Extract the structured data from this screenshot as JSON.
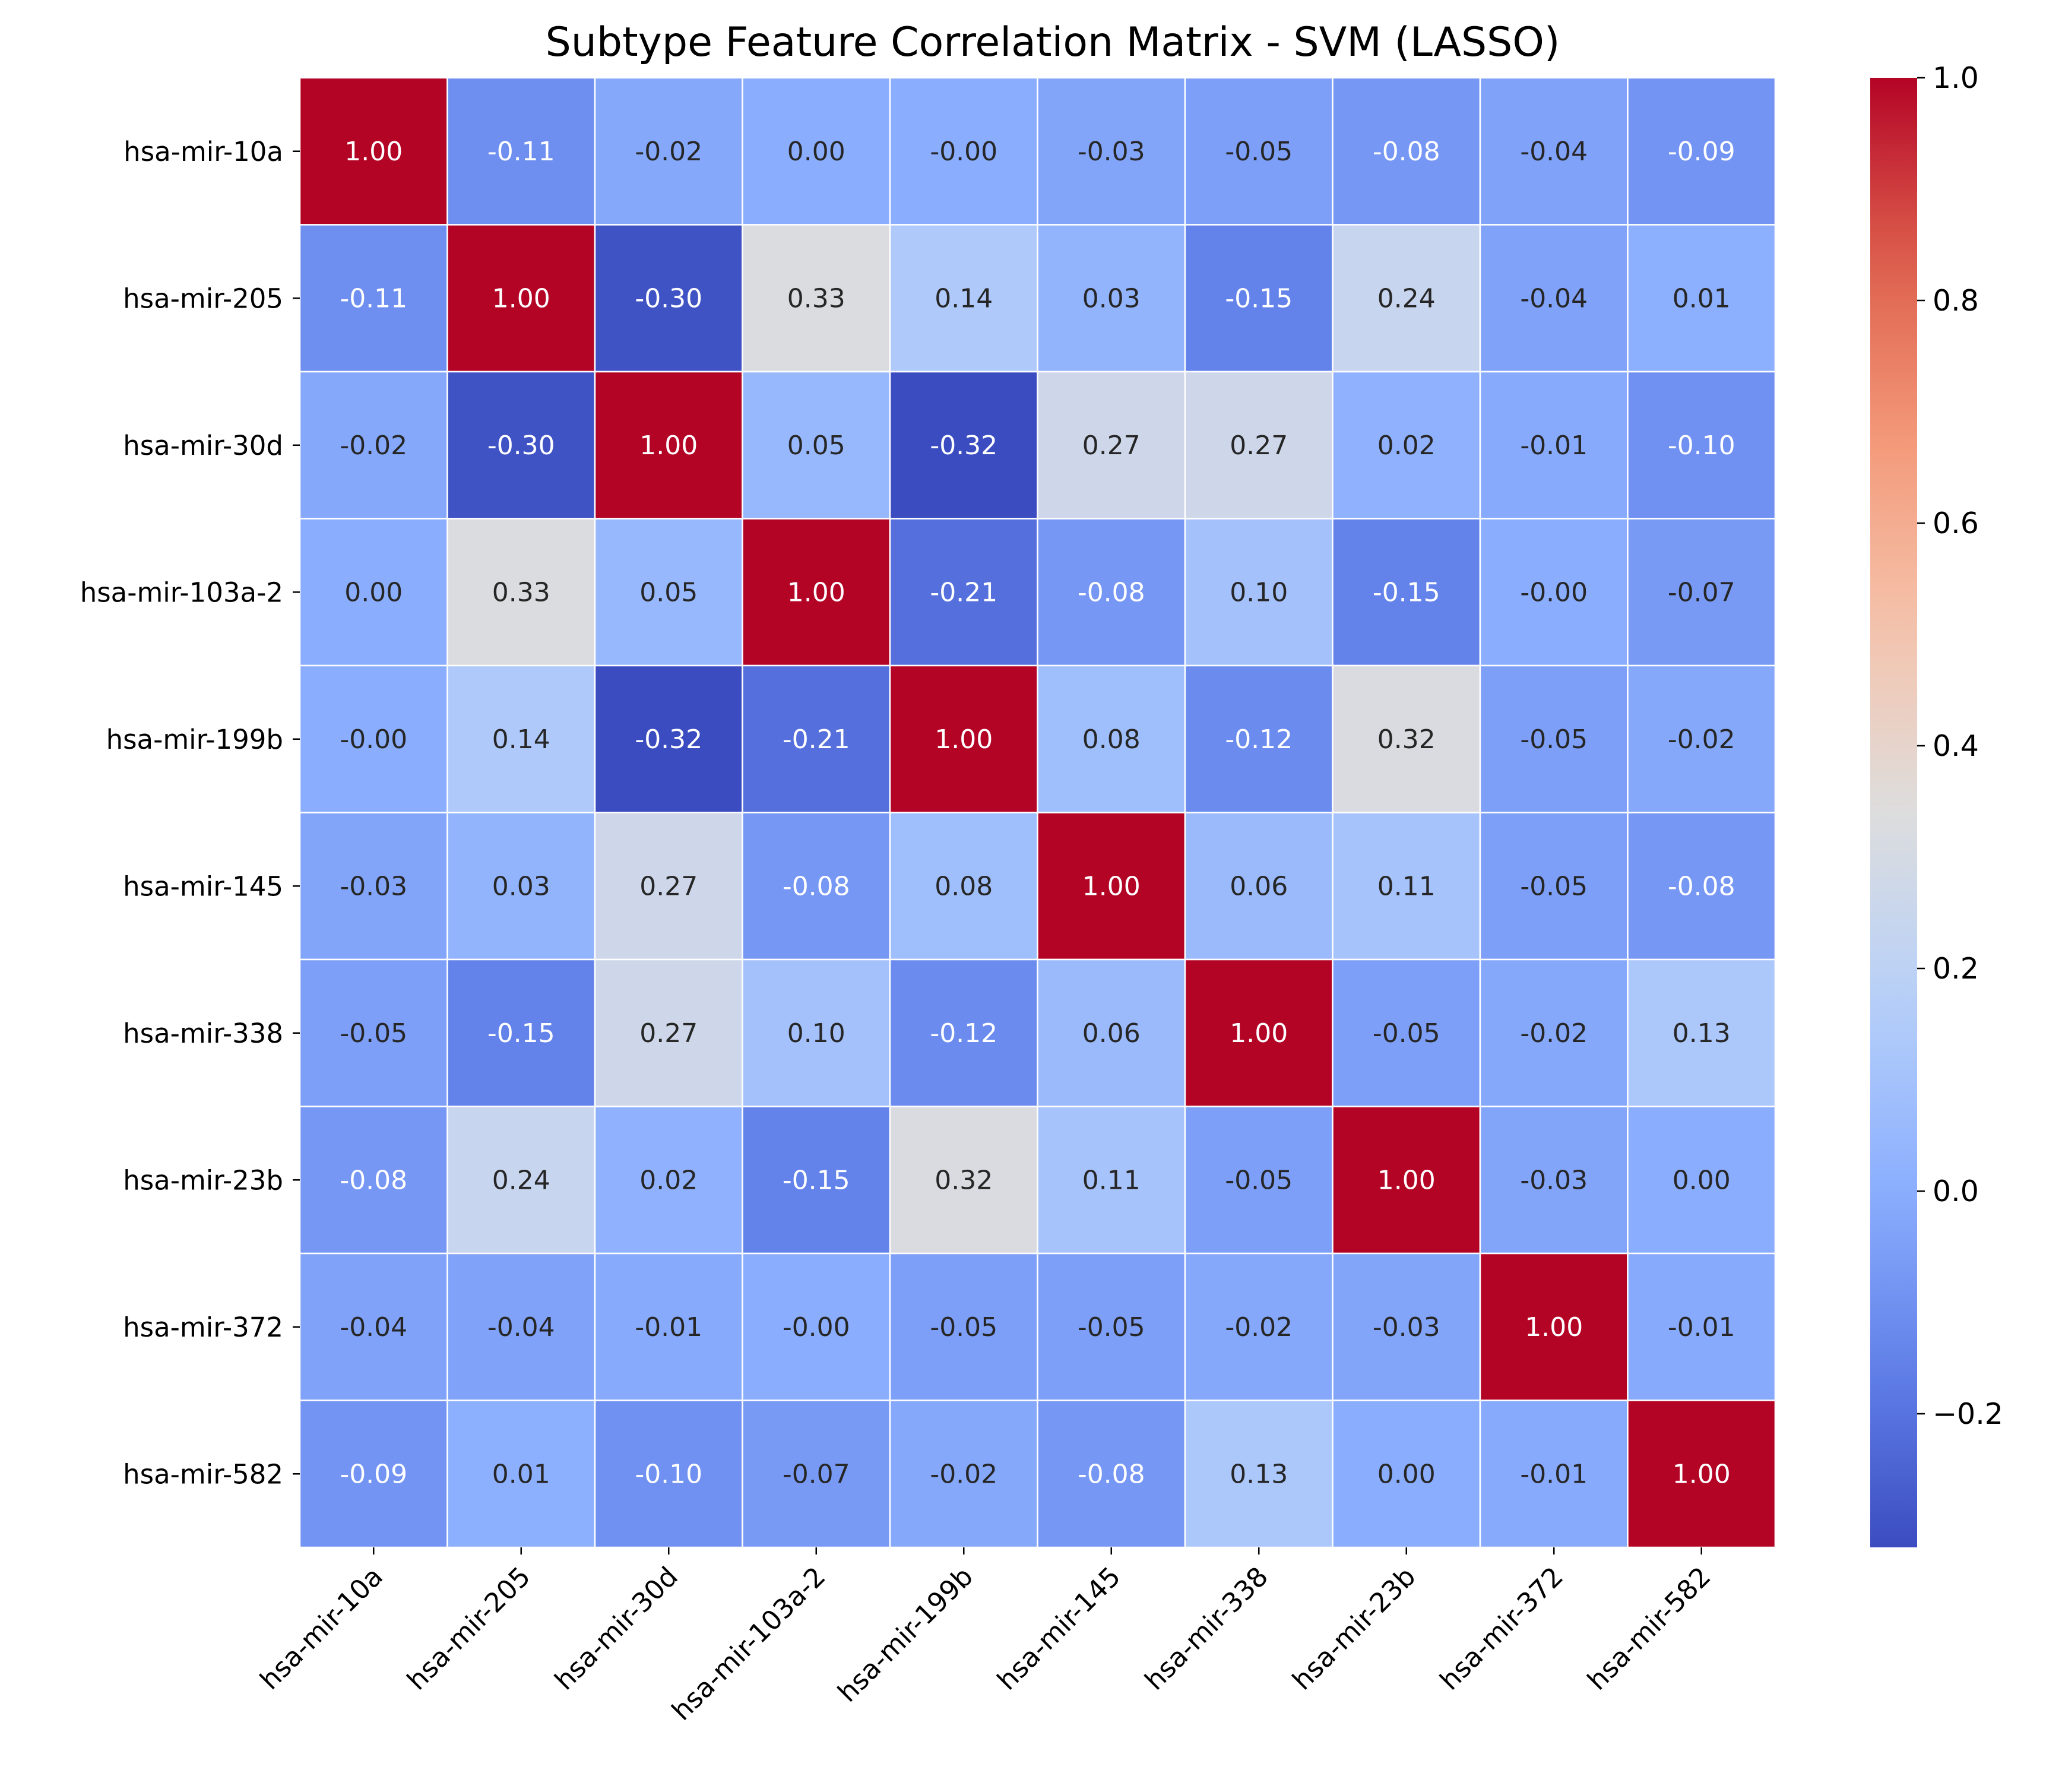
{
  "chart_data": {
    "type": "heatmap",
    "title": "Subtype Feature Correlation Matrix - SVM (LASSO)",
    "xlabel": "",
    "ylabel": "",
    "labels": [
      "hsa-mir-10a",
      "hsa-mir-205",
      "hsa-mir-30d",
      "hsa-mir-103a-2",
      "hsa-mir-199b",
      "hsa-mir-145",
      "hsa-mir-338",
      "hsa-mir-23b",
      "hsa-mir-372",
      "hsa-mir-582"
    ],
    "values": [
      [
        1.0,
        -0.11,
        -0.02,
        0.0,
        -0.0,
        -0.03,
        -0.05,
        -0.08,
        -0.04,
        -0.09
      ],
      [
        -0.11,
        1.0,
        -0.3,
        0.33,
        0.14,
        0.03,
        -0.15,
        0.24,
        -0.04,
        0.01
      ],
      [
        -0.02,
        -0.3,
        1.0,
        0.05,
        -0.32,
        0.27,
        0.27,
        0.02,
        -0.01,
        -0.1
      ],
      [
        0.0,
        0.33,
        0.05,
        1.0,
        -0.21,
        -0.08,
        0.1,
        -0.15,
        -0.0,
        -0.07
      ],
      [
        -0.0,
        0.14,
        -0.32,
        -0.21,
        1.0,
        0.08,
        -0.12,
        0.32,
        -0.05,
        -0.02
      ],
      [
        -0.03,
        0.03,
        0.27,
        -0.08,
        0.08,
        1.0,
        0.06,
        0.11,
        -0.05,
        -0.08
      ],
      [
        -0.05,
        -0.15,
        0.27,
        0.1,
        -0.12,
        0.06,
        1.0,
        -0.05,
        -0.02,
        0.13
      ],
      [
        -0.08,
        0.24,
        0.02,
        -0.15,
        0.32,
        0.11,
        -0.05,
        1.0,
        -0.03,
        0.0
      ],
      [
        -0.04,
        -0.04,
        -0.01,
        -0.0,
        -0.05,
        -0.05,
        -0.02,
        -0.03,
        1.0,
        -0.01
      ],
      [
        -0.09,
        0.01,
        -0.1,
        -0.07,
        -0.02,
        -0.08,
        0.13,
        0.0,
        -0.01,
        1.0
      ]
    ],
    "cell_labels": [
      [
        "1.00",
        "-0.11",
        "-0.02",
        "0.00",
        "-0.00",
        "-0.03",
        "-0.05",
        "-0.08",
        "-0.04",
        "-0.09"
      ],
      [
        "-0.11",
        "1.00",
        "-0.30",
        "0.33",
        "0.14",
        "0.03",
        "-0.15",
        "0.24",
        "-0.04",
        "0.01"
      ],
      [
        "-0.02",
        "-0.30",
        "1.00",
        "0.05",
        "-0.32",
        "0.27",
        "0.27",
        "0.02",
        "-0.01",
        "-0.10"
      ],
      [
        "0.00",
        "0.33",
        "0.05",
        "1.00",
        "-0.21",
        "-0.08",
        "0.10",
        "-0.15",
        "-0.00",
        "-0.07"
      ],
      [
        "-0.00",
        "0.14",
        "-0.32",
        "-0.21",
        "1.00",
        "0.08",
        "-0.12",
        "0.32",
        "-0.05",
        "-0.02"
      ],
      [
        "-0.03",
        "0.03",
        "0.27",
        "-0.08",
        "0.08",
        "1.00",
        "0.06",
        "0.11",
        "-0.05",
        "-0.08"
      ],
      [
        "-0.05",
        "-0.15",
        "0.27",
        "0.10",
        "-0.12",
        "0.06",
        "1.00",
        "-0.05",
        "-0.02",
        "0.13"
      ],
      [
        "-0.08",
        "0.24",
        "0.02",
        "-0.15",
        "0.32",
        "0.11",
        "-0.05",
        "1.00",
        "-0.03",
        "0.00"
      ],
      [
        "-0.04",
        "-0.04",
        "-0.01",
        "-0.00",
        "-0.05",
        "-0.05",
        "-0.02",
        "-0.03",
        "1.00",
        "-0.01"
      ],
      [
        "-0.09",
        "0.01",
        "-0.10",
        "-0.07",
        "-0.02",
        "-0.08",
        "0.13",
        "0.00",
        "-0.01",
        "1.00"
      ]
    ],
    "colormap": "coolwarm",
    "vmin": -0.32,
    "vmax": 1.0,
    "colorbar_ticks": [
      "−0.2",
      "0.0",
      "0.2",
      "0.4",
      "0.6",
      "0.8",
      "1.0"
    ],
    "colorbar_tick_values": [
      -0.2,
      0.0,
      0.2,
      0.4,
      0.6,
      0.8,
      1.0
    ],
    "gridlines": "white cell borders",
    "legend": "colorbar right"
  }
}
